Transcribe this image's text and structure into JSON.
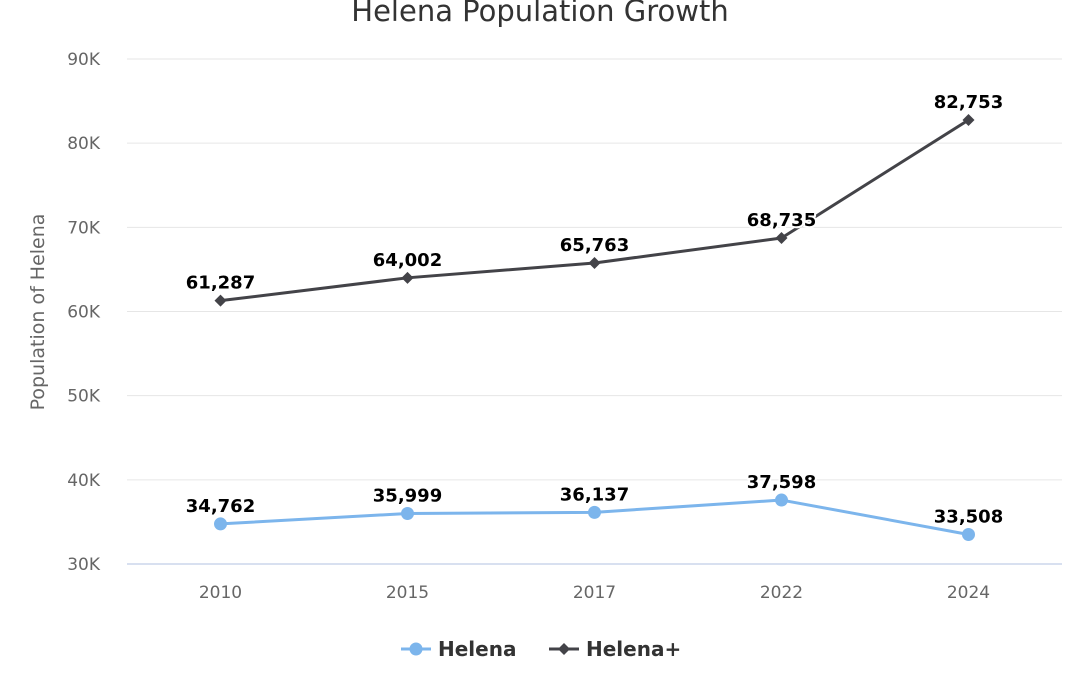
{
  "chart_data": {
    "type": "line",
    "title": "Helena Population Growth",
    "xlabel": "",
    "ylabel": "Population of Helena",
    "categories": [
      "2010",
      "2015",
      "2017",
      "2022",
      "2024"
    ],
    "y_ticks": [
      "30K",
      "40K",
      "50K",
      "60K",
      "70K",
      "80K",
      "90K"
    ],
    "ylim": [
      30000,
      90000
    ],
    "grid": true,
    "legend_position": "bottom",
    "series": [
      {
        "name": "Helena",
        "values": [
          34762,
          35999,
          36137,
          37598,
          33508
        ],
        "labels": [
          "34,762",
          "35,999",
          "36,137",
          "37,598",
          "33,508"
        ],
        "color": "#7cb5ec",
        "marker": "circle"
      },
      {
        "name": "Helena+",
        "values": [
          61287,
          64002,
          65763,
          68735,
          82753
        ],
        "labels": [
          "61,287",
          "64,002",
          "65,763",
          "68,735",
          "82,753"
        ],
        "color": "#434348",
        "marker": "diamond"
      }
    ]
  }
}
